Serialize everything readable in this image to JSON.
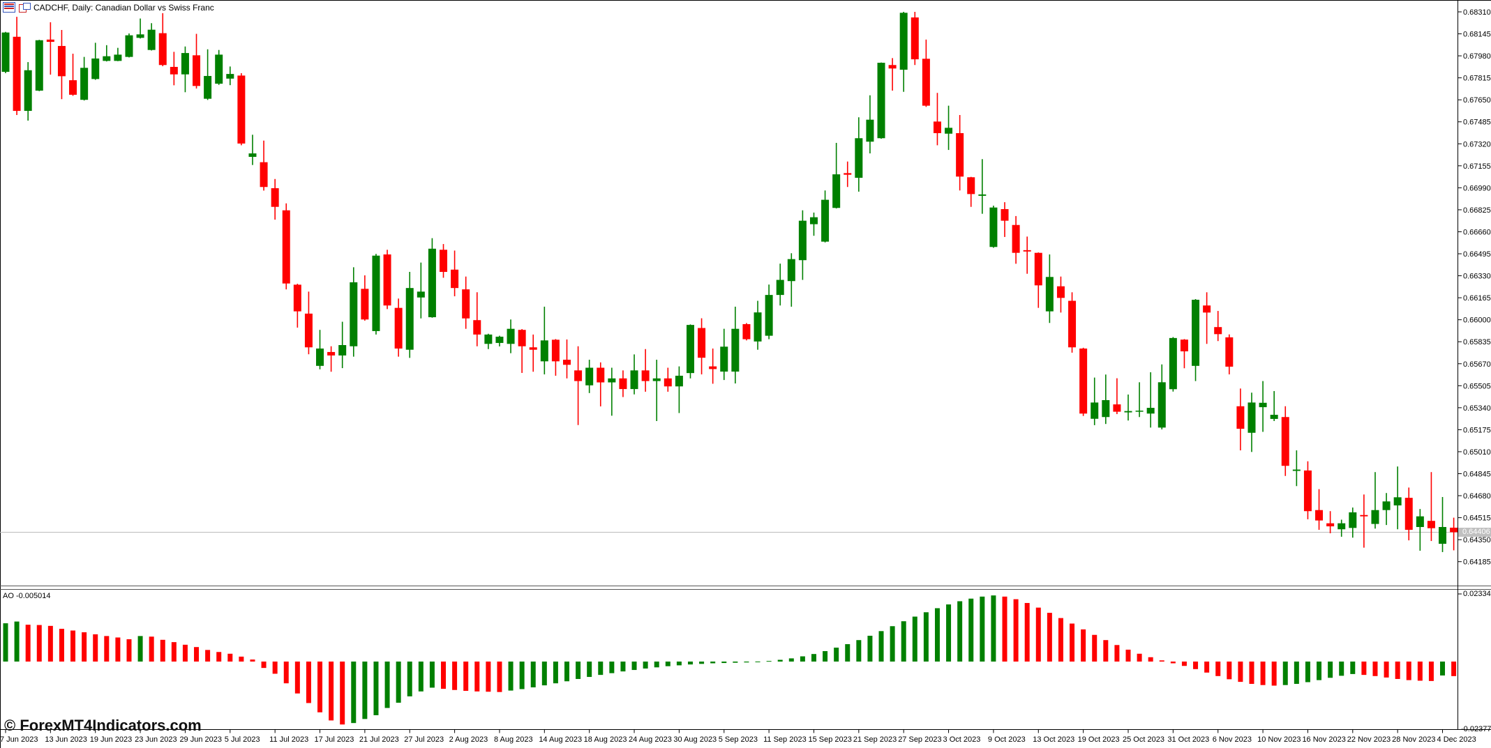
{
  "header": {
    "title": "CADCHF, Daily: Canadian Dollar vs Swiss Franc",
    "icon1": "chart-list-icon",
    "icon2": "chart-windows-icon"
  },
  "watermark": "© ForexMT4Indicators.com",
  "colors": {
    "up": "#008000",
    "down": "#FF0000",
    "axis": "#000000",
    "separator": "#555555",
    "bid_line": "#BBBBBB",
    "bid_badge_bg": "#C0C0C0",
    "bid_badge_text": "#FFFFFF",
    "background": "#FFFFFF"
  },
  "chart_data": {
    "type": "candlestick",
    "symbol": "CADCHF",
    "timeframe": "Daily",
    "title": "CADCHF, Daily: Canadian Dollar vs Swiss Franc",
    "price_axis": {
      "current_bid": "0.64406",
      "labels": [
        "0.68310",
        "0.68145",
        "0.67980",
        "0.67815",
        "0.67650",
        "0.67485",
        "0.67320",
        "0.67155",
        "0.66990",
        "0.66825",
        "0.66660",
        "0.66495",
        "0.66330",
        "0.66165",
        "0.66000",
        "0.65835",
        "0.65670",
        "0.65505",
        "0.65340",
        "0.65175",
        "0.65010",
        "0.64845",
        "0.64680",
        "0.64515",
        "0.64350",
        "0.64185"
      ]
    },
    "time_axis": {
      "labels": [
        "7 Jun 2023",
        "13 Jun 2023",
        "19 Jun 2023",
        "23 Jun 2023",
        "29 Jun 2023",
        "5 Jul 2023",
        "11 Jul 2023",
        "17 Jul 2023",
        "21 Jul 2023",
        "27 Jul 2023",
        "2 Aug 2023",
        "8 Aug 2023",
        "14 Aug 2023",
        "18 Aug 2023",
        "24 Aug 2023",
        "30 Aug 2023",
        "5 Sep 2023",
        "11 Sep 2023",
        "15 Sep 2023",
        "21 Sep 2023",
        "27 Sep 2023",
        "3 Oct 2023",
        "9 Oct 2023",
        "13 Oct 2023",
        "19 Oct 2023",
        "25 Oct 2023",
        "31 Oct 2023",
        "6 Nov 2023",
        "10 Nov 2023",
        "16 Nov 2023",
        "22 Nov 2023",
        "28 Nov 2023",
        "4 Dec 2023"
      ]
    },
    "candles": [
      [
        0.6786,
        0.6816,
        0.6785,
        0.68155
      ],
      [
        0.68123,
        0.68273,
        0.67536,
        0.67567
      ],
      [
        0.67567,
        0.67933,
        0.67494,
        0.67872
      ],
      [
        0.67719,
        0.681,
        0.67715,
        0.68097
      ],
      [
        0.68102,
        0.68232,
        0.67839,
        0.68085
      ],
      [
        0.68054,
        0.68174,
        0.67655,
        0.67827
      ],
      [
        0.67797,
        0.67996,
        0.6768,
        0.67688
      ],
      [
        0.6765,
        0.67972,
        0.67645,
        0.6789
      ],
      [
        0.67806,
        0.68078,
        0.678,
        0.6796
      ],
      [
        0.67942,
        0.6806,
        0.67938,
        0.67977
      ],
      [
        0.67942,
        0.6804,
        0.6794,
        0.67989
      ],
      [
        0.67972,
        0.68148,
        0.67968,
        0.68134
      ],
      [
        0.68115,
        0.6826,
        0.6811,
        0.68141
      ],
      [
        0.68024,
        0.68225,
        0.6802,
        0.68176
      ],
      [
        0.6815,
        0.683,
        0.67902,
        0.67911
      ],
      [
        0.67897,
        0.6801,
        0.67759,
        0.67841
      ],
      [
        0.67841,
        0.6805,
        0.67707,
        0.68001
      ],
      [
        0.67984,
        0.68145,
        0.67735,
        0.67754
      ],
      [
        0.67658,
        0.68029,
        0.67649,
        0.67829
      ],
      [
        0.67771,
        0.68024,
        0.67762,
        0.67989
      ],
      [
        0.67809,
        0.679,
        0.6776,
        0.67844
      ],
      [
        0.67832,
        0.6785,
        0.67309,
        0.67322
      ],
      [
        0.67222,
        0.67388,
        0.67161,
        0.67248
      ],
      [
        0.67182,
        0.67344,
        0.66969,
        0.66996
      ],
      [
        0.66987,
        0.67056,
        0.66751,
        0.66847
      ],
      [
        0.66821,
        0.66873,
        0.66228,
        0.66272
      ],
      [
        0.66263,
        0.6627,
        0.65941,
        0.66063
      ],
      [
        0.66046,
        0.66211,
        0.65741,
        0.65793
      ],
      [
        0.65654,
        0.65924,
        0.65628,
        0.65784
      ],
      [
        0.65758,
        0.65801,
        0.6561,
        0.65732
      ],
      [
        0.65732,
        0.65985,
        0.65637,
        0.6581
      ],
      [
        0.65801,
        0.66394,
        0.65723,
        0.66281
      ],
      [
        0.66232,
        0.66333,
        0.65993,
        0.66002
      ],
      [
        0.65915,
        0.66494,
        0.65889,
        0.66481
      ],
      [
        0.6649,
        0.66525,
        0.6608,
        0.66107
      ],
      [
        0.66089,
        0.66159,
        0.65723,
        0.65784
      ],
      [
        0.65775,
        0.66359,
        0.65714,
        0.66238
      ],
      [
        0.66167,
        0.66429,
        0.6601,
        0.66211
      ],
      [
        0.66019,
        0.66612,
        0.66015,
        0.66533
      ],
      [
        0.66525,
        0.66568,
        0.66315,
        0.66359
      ],
      [
        0.66376,
        0.66519,
        0.66176,
        0.66238
      ],
      [
        0.66228,
        0.66324,
        0.65932,
        0.6601
      ],
      [
        0.65997,
        0.66206,
        0.65801,
        0.65889
      ],
      [
        0.65819,
        0.65895,
        0.6578,
        0.65889
      ],
      [
        0.65826,
        0.6588,
        0.658,
        0.65873
      ],
      [
        0.65819,
        0.66002,
        0.65749,
        0.65932
      ],
      [
        0.65924,
        0.6593,
        0.65601,
        0.65801
      ],
      [
        0.65793,
        0.65889,
        0.6561,
        0.65775
      ],
      [
        0.65688,
        0.66098,
        0.6559,
        0.65845
      ],
      [
        0.6585,
        0.65855,
        0.6558,
        0.65688
      ],
      [
        0.657,
        0.65852,
        0.6556,
        0.65662
      ],
      [
        0.6562,
        0.65801,
        0.6521,
        0.6554
      ],
      [
        0.65508,
        0.657,
        0.6545,
        0.6564
      ],
      [
        0.6564,
        0.6568,
        0.6535,
        0.6553
      ],
      [
        0.6553,
        0.6564,
        0.6528,
        0.6556
      ],
      [
        0.6556,
        0.6562,
        0.6542,
        0.6548
      ],
      [
        0.6548,
        0.6574,
        0.6544,
        0.6562
      ],
      [
        0.6562,
        0.6578,
        0.6546,
        0.6554
      ],
      [
        0.6554,
        0.657,
        0.6524,
        0.6556
      ],
      [
        0.6556,
        0.6564,
        0.6546,
        0.655
      ],
      [
        0.655,
        0.6565,
        0.653,
        0.6558
      ],
      [
        0.656,
        0.65965,
        0.6556,
        0.65961
      ],
      [
        0.65938,
        0.66011,
        0.6559,
        0.65715
      ],
      [
        0.6565,
        0.65784,
        0.6552,
        0.6563
      ],
      [
        0.65611,
        0.65932,
        0.65548,
        0.65798
      ],
      [
        0.65611,
        0.66098,
        0.65522,
        0.65932
      ],
      [
        0.65967,
        0.65975,
        0.65845,
        0.65854
      ],
      [
        0.65837,
        0.66142,
        0.65775,
        0.66055
      ],
      [
        0.6588,
        0.66264,
        0.65854,
        0.66186
      ],
      [
        0.66186,
        0.66421,
        0.66107,
        0.66299
      ],
      [
        0.6629,
        0.66499,
        0.66098,
        0.66455
      ],
      [
        0.66447,
        0.66821,
        0.66299,
        0.66743
      ],
      [
        0.66717,
        0.66804,
        0.6663,
        0.66769
      ],
      [
        0.66586,
        0.6697,
        0.6658,
        0.669
      ],
      [
        0.66839,
        0.67327,
        0.66835,
        0.67091
      ],
      [
        0.671,
        0.67187,
        0.66996,
        0.67088
      ],
      [
        0.67065,
        0.67519,
        0.66961,
        0.67362
      ],
      [
        0.67336,
        0.67684,
        0.67248,
        0.67501
      ],
      [
        0.67362,
        0.6793,
        0.67358,
        0.67928
      ],
      [
        0.67911,
        0.67963,
        0.67719,
        0.67885
      ],
      [
        0.67876,
        0.6831,
        0.6771,
        0.68303
      ],
      [
        0.68268,
        0.6831,
        0.67911,
        0.67954
      ],
      [
        0.67958,
        0.68102,
        0.67597,
        0.67606
      ],
      [
        0.67487,
        0.67702,
        0.67309,
        0.674
      ],
      [
        0.67396,
        0.67606,
        0.67274,
        0.6744
      ],
      [
        0.674,
        0.67536,
        0.6697,
        0.67074
      ],
      [
        0.67069,
        0.67072,
        0.66847,
        0.66943
      ],
      [
        0.6693,
        0.67205,
        0.66795,
        0.6694
      ],
      [
        0.66546,
        0.66856,
        0.6654,
        0.66842
      ],
      [
        0.6683,
        0.66882,
        0.66621,
        0.66743
      ],
      [
        0.66711,
        0.66778,
        0.6642,
        0.66502
      ],
      [
        0.66522,
        0.66624,
        0.66345,
        0.66512
      ],
      [
        0.66502,
        0.66505,
        0.66089,
        0.66258
      ],
      [
        0.66063,
        0.6649,
        0.65976,
        0.66321
      ],
      [
        0.66251,
        0.66324,
        0.66054,
        0.66164
      ],
      [
        0.66142,
        0.66206,
        0.65753,
        0.65793
      ],
      [
        0.65784,
        0.6579,
        0.65278,
        0.65296
      ],
      [
        0.65257,
        0.65566,
        0.65209,
        0.65379
      ],
      [
        0.6527,
        0.65589,
        0.65218,
        0.65397
      ],
      [
        0.65365,
        0.65561,
        0.65292,
        0.6531
      ],
      [
        0.65305,
        0.65439,
        0.65244,
        0.65315
      ],
      [
        0.6531,
        0.65531,
        0.6527,
        0.65318
      ],
      [
        0.65296,
        0.65606,
        0.65191,
        0.65339
      ],
      [
        0.65191,
        0.65665,
        0.65177,
        0.65531
      ],
      [
        0.65479,
        0.6587,
        0.65461,
        0.65863
      ],
      [
        0.65851,
        0.65855,
        0.65636,
        0.65763
      ],
      [
        0.65654,
        0.66155,
        0.6554,
        0.6615
      ],
      [
        0.66107,
        0.66206,
        0.65819,
        0.66054
      ],
      [
        0.65945,
        0.66066,
        0.6584,
        0.65892
      ],
      [
        0.65868,
        0.6589,
        0.6559,
        0.65648
      ],
      [
        0.65351,
        0.65484,
        0.6502,
        0.65182
      ],
      [
        0.65152,
        0.65453,
        0.65008,
        0.65379
      ],
      [
        0.65344,
        0.6554,
        0.65159,
        0.65377
      ],
      [
        0.65256,
        0.65465,
        0.6524,
        0.65287
      ],
      [
        0.6527,
        0.65351,
        0.64828,
        0.64904
      ],
      [
        0.64866,
        0.6502,
        0.64752,
        0.64876
      ],
      [
        0.64869,
        0.64938,
        0.64503,
        0.64564
      ],
      [
        0.64572,
        0.64729,
        0.64424,
        0.64494
      ],
      [
        0.64473,
        0.64564,
        0.64398,
        0.6445
      ],
      [
        0.64428,
        0.645,
        0.64372,
        0.64473
      ],
      [
        0.64438,
        0.64591,
        0.64365,
        0.64555
      ],
      [
        0.64535,
        0.64689,
        0.6429,
        0.64525
      ],
      [
        0.64468,
        0.64857,
        0.64433,
        0.64572
      ],
      [
        0.64572,
        0.647,
        0.6446,
        0.64637
      ],
      [
        0.64607,
        0.64899,
        0.64428,
        0.64668
      ],
      [
        0.64664,
        0.64741,
        0.64345,
        0.64424
      ],
      [
        0.64445,
        0.6458,
        0.64267,
        0.64525
      ],
      [
        0.64491,
        0.64857,
        0.6434,
        0.64436
      ],
      [
        0.64319,
        0.6467,
        0.64257,
        0.64445
      ],
      [
        0.6444,
        0.64515,
        0.6427,
        0.64406
      ]
    ],
    "indicator": {
      "name": "AO",
      "label": "AO -0.005014",
      "value": "-0.005014",
      "axis_max": "0.023341",
      "axis_min": "-0.023775",
      "values": [
        0.0132,
        0.0138,
        0.0127,
        0.0126,
        0.0123,
        0.0113,
        0.0107,
        0.0101,
        0.0094,
        0.0088,
        0.0083,
        0.0077,
        0.0088,
        0.0086,
        0.0075,
        0.0067,
        0.0058,
        0.005,
        0.004,
        0.0033,
        0.0027,
        0.0017,
        0.0007,
        -0.0022,
        -0.0042,
        -0.0075,
        -0.011,
        -0.0143,
        -0.0175,
        -0.0203,
        -0.0217,
        -0.0212,
        -0.0198,
        -0.0185,
        -0.016,
        -0.0142,
        -0.012,
        -0.0103,
        -0.009,
        -0.0094,
        -0.0098,
        -0.0101,
        -0.0103,
        -0.0104,
        -0.0105,
        -0.01,
        -0.0095,
        -0.0089,
        -0.0082,
        -0.0075,
        -0.0068,
        -0.006,
        -0.0053,
        -0.0046,
        -0.004,
        -0.0034,
        -0.0029,
        -0.0024,
        -0.002,
        -0.0016,
        -0.0013,
        -0.001,
        -0.0008,
        -0.0006,
        -0.0005,
        -0.0004,
        -0.0003,
        -0.0001,
        0.0002,
        0.0006,
        0.0011,
        0.0018,
        0.0026,
        0.0036,
        0.0048,
        0.006,
        0.0074,
        0.0089,
        0.0105,
        0.0122,
        0.0139,
        0.0155,
        0.017,
        0.0184,
        0.0197,
        0.0208,
        0.0217,
        0.0224,
        0.0228,
        0.0224,
        0.0215,
        0.0202,
        0.0186,
        0.0168,
        0.015,
        0.0131,
        0.0111,
        0.0092,
        0.0074,
        0.0057,
        0.0041,
        0.0027,
        0.0015,
        0.0004,
        -0.0006,
        -0.0015,
        -0.0026,
        -0.0038,
        -0.005,
        -0.0061,
        -0.007,
        -0.0077,
        -0.0081,
        -0.0083,
        -0.0081,
        -0.0077,
        -0.0071,
        -0.0064,
        -0.0056,
        -0.0049,
        -0.0043,
        -0.0046,
        -0.005,
        -0.0055,
        -0.006,
        -0.0064,
        -0.0066,
        -0.0067,
        -0.0048,
        -0.005014
      ]
    }
  }
}
